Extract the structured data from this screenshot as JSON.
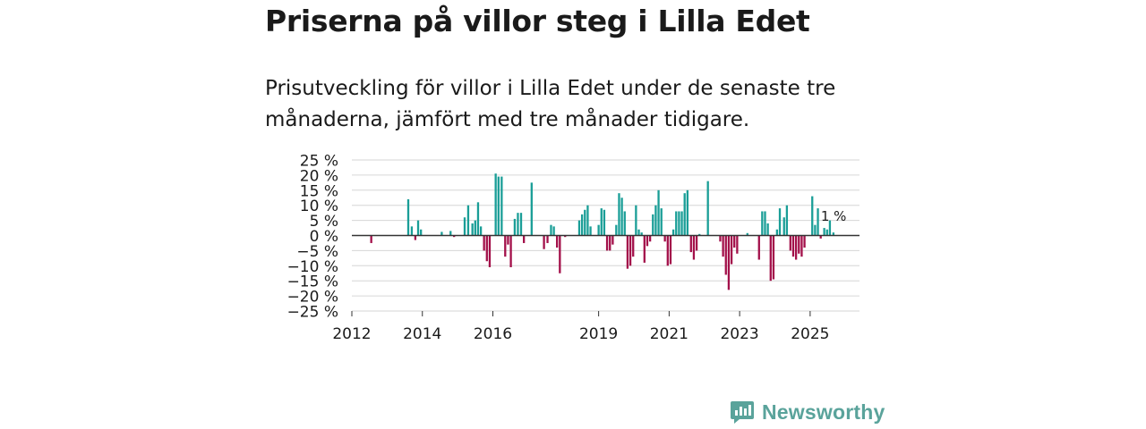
{
  "header": {
    "title": "Priserna på villor steg i Lilla Edet",
    "subtitle": "Prisutveckling för villor i Lilla Edet under de senaste tre månaderna, jämfört med tre månader tidigare."
  },
  "brand": {
    "name": "Newsworthy"
  },
  "colors": {
    "positive": "#1a9e97",
    "negative": "#a3104a",
    "grid": "#d6d6d6",
    "zero": "#333333",
    "brand": "#5aa39b"
  },
  "chart_data": {
    "type": "bar",
    "ylabel": "",
    "xlabel": "",
    "ylim": [
      -25,
      25
    ],
    "yticks": [
      25,
      20,
      15,
      10,
      5,
      0,
      -5,
      -10,
      -15,
      -20,
      -25
    ],
    "ytick_labels": [
      "25 %",
      "20 %",
      "15 %",
      "10 %",
      "5 %",
      "0 %",
      "−5 %",
      "−10 %",
      "−15 %",
      "−20 %",
      "−25 %"
    ],
    "xlim": [
      2012,
      2026.4
    ],
    "xticks": [
      2012,
      2014,
      2016,
      2019,
      2021,
      2023,
      2025
    ],
    "xtick_labels": [
      "2012",
      "2014",
      "2016",
      "2019",
      "2021",
      "2023",
      "2025"
    ],
    "last_value_label": "1 %",
    "series": [
      {
        "name": "Prisutveckling",
        "points": [
          {
            "x": 2012.55,
            "y": -2.5
          },
          {
            "x": 2013.6,
            "y": 12
          },
          {
            "x": 2013.7,
            "y": 3
          },
          {
            "x": 2013.8,
            "y": -1.5
          },
          {
            "x": 2013.88,
            "y": 5
          },
          {
            "x": 2013.96,
            "y": 2
          },
          {
            "x": 2014.55,
            "y": 1.2
          },
          {
            "x": 2014.8,
            "y": 1.5
          },
          {
            "x": 2014.9,
            "y": -0.5
          },
          {
            "x": 2015.2,
            "y": 6
          },
          {
            "x": 2015.3,
            "y": 10
          },
          {
            "x": 2015.42,
            "y": 4
          },
          {
            "x": 2015.5,
            "y": 5
          },
          {
            "x": 2015.58,
            "y": 11
          },
          {
            "x": 2015.66,
            "y": 3
          },
          {
            "x": 2015.75,
            "y": -5
          },
          {
            "x": 2015.83,
            "y": -8.5
          },
          {
            "x": 2015.91,
            "y": -10.5
          },
          {
            "x": 2016.08,
            "y": 20.5
          },
          {
            "x": 2016.16,
            "y": 19.5
          },
          {
            "x": 2016.25,
            "y": 19.5
          },
          {
            "x": 2016.35,
            "y": -7
          },
          {
            "x": 2016.43,
            "y": -3
          },
          {
            "x": 2016.51,
            "y": -10.5
          },
          {
            "x": 2016.62,
            "y": 5.5
          },
          {
            "x": 2016.71,
            "y": 7.5
          },
          {
            "x": 2016.8,
            "y": 7.5
          },
          {
            "x": 2016.88,
            "y": -2.5
          },
          {
            "x": 2017.1,
            "y": 17.5
          },
          {
            "x": 2017.45,
            "y": -4.5
          },
          {
            "x": 2017.55,
            "y": -2.5
          },
          {
            "x": 2017.65,
            "y": 3.5
          },
          {
            "x": 2017.73,
            "y": 3
          },
          {
            "x": 2017.82,
            "y": -4
          },
          {
            "x": 2017.9,
            "y": -12.5
          },
          {
            "x": 2018.05,
            "y": -0.5
          },
          {
            "x": 2018.45,
            "y": 5
          },
          {
            "x": 2018.53,
            "y": 7
          },
          {
            "x": 2018.61,
            "y": 8.5
          },
          {
            "x": 2018.69,
            "y": 10
          },
          {
            "x": 2018.77,
            "y": 3
          },
          {
            "x": 2019.0,
            "y": 3.5
          },
          {
            "x": 2019.08,
            "y": 9
          },
          {
            "x": 2019.16,
            "y": 8.5
          },
          {
            "x": 2019.24,
            "y": -5
          },
          {
            "x": 2019.32,
            "y": -5
          },
          {
            "x": 2019.4,
            "y": -3
          },
          {
            "x": 2019.5,
            "y": 3.5
          },
          {
            "x": 2019.58,
            "y": 14
          },
          {
            "x": 2019.66,
            "y": 12.5
          },
          {
            "x": 2019.74,
            "y": 8
          },
          {
            "x": 2019.82,
            "y": -11
          },
          {
            "x": 2019.9,
            "y": -10
          },
          {
            "x": 2019.98,
            "y": -7
          },
          {
            "x": 2020.06,
            "y": 10
          },
          {
            "x": 2020.14,
            "y": 2
          },
          {
            "x": 2020.22,
            "y": 1
          },
          {
            "x": 2020.3,
            "y": -9
          },
          {
            "x": 2020.38,
            "y": -3.5
          },
          {
            "x": 2020.46,
            "y": -2
          },
          {
            "x": 2020.54,
            "y": 7
          },
          {
            "x": 2020.62,
            "y": 10
          },
          {
            "x": 2020.7,
            "y": 15
          },
          {
            "x": 2020.78,
            "y": 9
          },
          {
            "x": 2020.88,
            "y": -2
          },
          {
            "x": 2020.96,
            "y": -10
          },
          {
            "x": 2021.04,
            "y": -9.5
          },
          {
            "x": 2021.12,
            "y": 2
          },
          {
            "x": 2021.2,
            "y": 8
          },
          {
            "x": 2021.28,
            "y": 8
          },
          {
            "x": 2021.36,
            "y": 8
          },
          {
            "x": 2021.44,
            "y": 14
          },
          {
            "x": 2021.52,
            "y": 15
          },
          {
            "x": 2021.62,
            "y": -5.5
          },
          {
            "x": 2021.7,
            "y": -8
          },
          {
            "x": 2021.78,
            "y": -5
          },
          {
            "x": 2021.86,
            "y": 0.5
          },
          {
            "x": 2022.1,
            "y": 18
          },
          {
            "x": 2022.45,
            "y": -2
          },
          {
            "x": 2022.53,
            "y": -7
          },
          {
            "x": 2022.61,
            "y": -13
          },
          {
            "x": 2022.69,
            "y": -18
          },
          {
            "x": 2022.77,
            "y": -9.5
          },
          {
            "x": 2022.85,
            "y": -4
          },
          {
            "x": 2022.93,
            "y": -6
          },
          {
            "x": 2023.22,
            "y": 0.8
          },
          {
            "x": 2023.55,
            "y": -8
          },
          {
            "x": 2023.64,
            "y": 8
          },
          {
            "x": 2023.72,
            "y": 8
          },
          {
            "x": 2023.8,
            "y": 4
          },
          {
            "x": 2023.88,
            "y": -15
          },
          {
            "x": 2023.96,
            "y": -14.5
          },
          {
            "x": 2024.06,
            "y": 2
          },
          {
            "x": 2024.14,
            "y": 9
          },
          {
            "x": 2024.26,
            "y": 6
          },
          {
            "x": 2024.34,
            "y": 10
          },
          {
            "x": 2024.44,
            "y": -5
          },
          {
            "x": 2024.52,
            "y": -7
          },
          {
            "x": 2024.6,
            "y": -8
          },
          {
            "x": 2024.68,
            "y": -6
          },
          {
            "x": 2024.76,
            "y": -7
          },
          {
            "x": 2024.84,
            "y": -4
          },
          {
            "x": 2025.06,
            "y": 13
          },
          {
            "x": 2025.14,
            "y": 3.5
          },
          {
            "x": 2025.22,
            "y": 9
          },
          {
            "x": 2025.3,
            "y": -1
          },
          {
            "x": 2025.4,
            "y": 2.5
          },
          {
            "x": 2025.48,
            "y": 2
          },
          {
            "x": 2025.56,
            "y": 5
          },
          {
            "x": 2025.66,
            "y": 1
          }
        ]
      }
    ]
  }
}
